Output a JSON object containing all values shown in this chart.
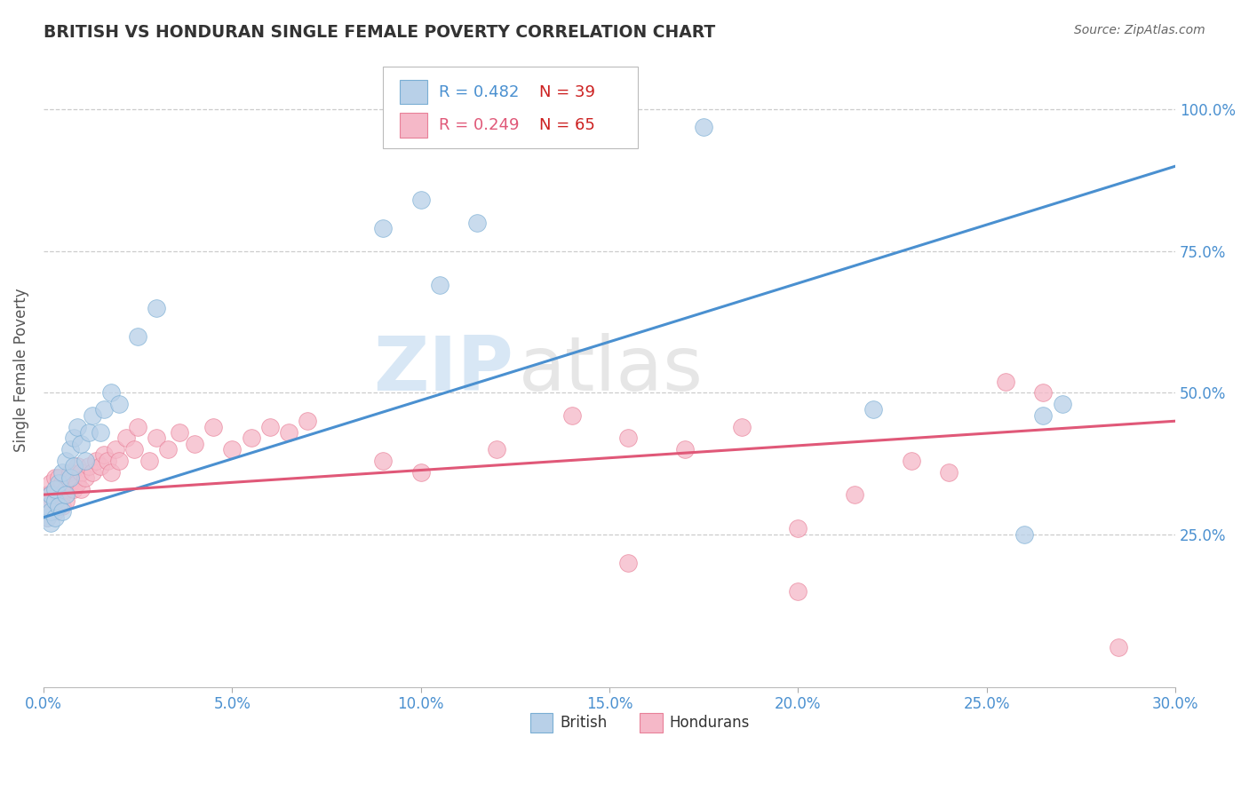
{
  "title": "BRITISH VS HONDURAN SINGLE FEMALE POVERTY CORRELATION CHART",
  "source": "Source: ZipAtlas.com",
  "ylabel": "Single Female Poverty",
  "xlim": [
    0.0,
    0.3
  ],
  "ylim": [
    -0.02,
    1.1
  ],
  "xtick_labels": [
    "0.0%",
    "5.0%",
    "10.0%",
    "15.0%",
    "20.0%",
    "25.0%",
    "30.0%"
  ],
  "xtick_values": [
    0.0,
    0.05,
    0.1,
    0.15,
    0.2,
    0.25,
    0.3
  ],
  "ytick_labels": [
    "25.0%",
    "50.0%",
    "75.0%",
    "100.0%"
  ],
  "ytick_values": [
    0.25,
    0.5,
    0.75,
    1.0
  ],
  "british_color": "#b8d0e8",
  "honduran_color": "#f5b8c8",
  "british_edge_color": "#7aaed4",
  "honduran_edge_color": "#e88098",
  "british_line_color": "#4a90d0",
  "honduran_line_color": "#e05878",
  "legend_R_british": "R = 0.482",
  "legend_N_british": "N = 39",
  "legend_R_british_color": "#4a90d0",
  "legend_N_british_color": "#cc2020",
  "legend_R_honduran": "R = 0.249",
  "legend_N_honduran": "N = 65",
  "legend_R_honduran_color": "#e05878",
  "legend_N_honduran_color": "#cc2020",
  "watermark_zip": "ZIP",
  "watermark_atlas": "atlas",
  "title_color": "#333333",
  "source_color": "#666666",
  "ylabel_color": "#555555",
  "tick_label_color": "#4a90d0",
  "grid_color": "#cccccc",
  "british_x": [
    0.001,
    0.001,
    0.002,
    0.002,
    0.002,
    0.003,
    0.003,
    0.003,
    0.004,
    0.004,
    0.005,
    0.005,
    0.006,
    0.006,
    0.007,
    0.007,
    0.008,
    0.008,
    0.009,
    0.01,
    0.011,
    0.012,
    0.013,
    0.015,
    0.016,
    0.018,
    0.02,
    0.025,
    0.03,
    0.09,
    0.1,
    0.105,
    0.115,
    0.155,
    0.175,
    0.22,
    0.26,
    0.265,
    0.27
  ],
  "british_y": [
    0.28,
    0.3,
    0.27,
    0.29,
    0.32,
    0.28,
    0.31,
    0.33,
    0.3,
    0.34,
    0.29,
    0.36,
    0.38,
    0.32,
    0.35,
    0.4,
    0.42,
    0.37,
    0.44,
    0.41,
    0.38,
    0.43,
    0.46,
    0.43,
    0.47,
    0.5,
    0.48,
    0.6,
    0.65,
    0.79,
    0.84,
    0.69,
    0.8,
    1.0,
    0.97,
    0.47,
    0.25,
    0.46,
    0.48
  ],
  "honduran_x": [
    0.001,
    0.001,
    0.001,
    0.002,
    0.002,
    0.002,
    0.003,
    0.003,
    0.003,
    0.004,
    0.004,
    0.004,
    0.005,
    0.005,
    0.005,
    0.006,
    0.006,
    0.007,
    0.007,
    0.008,
    0.008,
    0.009,
    0.009,
    0.01,
    0.01,
    0.011,
    0.012,
    0.013,
    0.014,
    0.015,
    0.016,
    0.017,
    0.018,
    0.019,
    0.02,
    0.022,
    0.024,
    0.025,
    0.028,
    0.03,
    0.033,
    0.036,
    0.04,
    0.045,
    0.05,
    0.055,
    0.06,
    0.065,
    0.07,
    0.09,
    0.1,
    0.12,
    0.14,
    0.155,
    0.17,
    0.185,
    0.2,
    0.215,
    0.23,
    0.24,
    0.255,
    0.265,
    0.155,
    0.2,
    0.285
  ],
  "honduran_y": [
    0.32,
    0.3,
    0.28,
    0.34,
    0.3,
    0.32,
    0.31,
    0.35,
    0.29,
    0.33,
    0.31,
    0.35,
    0.32,
    0.3,
    0.34,
    0.33,
    0.31,
    0.36,
    0.34,
    0.35,
    0.33,
    0.37,
    0.34,
    0.36,
    0.33,
    0.35,
    0.37,
    0.36,
    0.38,
    0.37,
    0.39,
    0.38,
    0.36,
    0.4,
    0.38,
    0.42,
    0.4,
    0.44,
    0.38,
    0.42,
    0.4,
    0.43,
    0.41,
    0.44,
    0.4,
    0.42,
    0.44,
    0.43,
    0.45,
    0.38,
    0.36,
    0.4,
    0.46,
    0.42,
    0.4,
    0.44,
    0.26,
    0.32,
    0.38,
    0.36,
    0.52,
    0.5,
    0.2,
    0.15,
    0.05
  ],
  "british_line_x0": 0.0,
  "british_line_y0": 0.28,
  "british_line_x1": 0.3,
  "british_line_y1": 0.9,
  "honduran_line_x0": 0.0,
  "honduran_line_y0": 0.32,
  "honduran_line_x1": 0.3,
  "honduran_line_y1": 0.45
}
